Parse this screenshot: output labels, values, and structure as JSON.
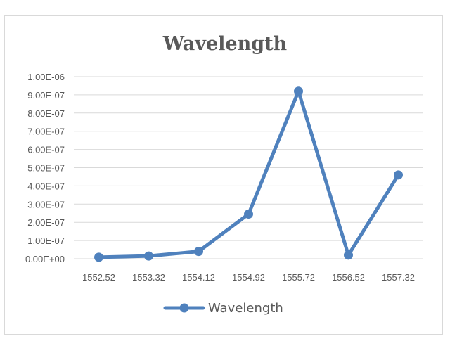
{
  "chart_data": {
    "type": "line",
    "title": "Wavelength",
    "xlabel": "",
    "ylabel": "",
    "categories": [
      "1552.52",
      "1553.32",
      "1554.12",
      "1554.92",
      "1555.72",
      "1556.52",
      "1557.32"
    ],
    "yticks": [
      "0.00E+00",
      "1.00E-07",
      "2.00E-07",
      "3.00E-07",
      "4.00E-07",
      "5.00E-07",
      "6.00E-07",
      "7.00E-07",
      "8.00E-07",
      "9.00E-07",
      "1.00E-06"
    ],
    "ylim": [
      0,
      1e-06
    ],
    "grid": true,
    "legend_position": "bottom",
    "series": [
      {
        "name": "Wavelength",
        "color": "#4f81bd",
        "values": [
          8e-09,
          1.5e-08,
          4e-08,
          2.45e-07,
          9.2e-07,
          2e-08,
          4.6e-07
        ]
      }
    ]
  }
}
